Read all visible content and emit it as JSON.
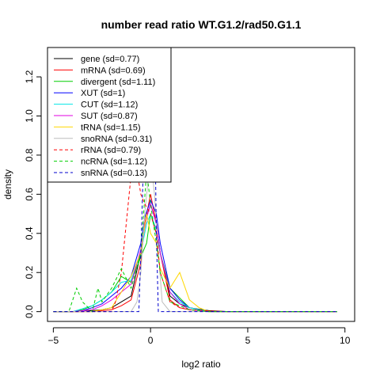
{
  "chart_data": {
    "type": "line",
    "title": "number read ratio WT.G1.2/rad50.G1.1",
    "xlabel": "log2 ratio",
    "ylabel": "density",
    "xlim": [
      -5.3,
      10.5
    ],
    "ylim": [
      -0.05,
      1.35
    ],
    "xticks": [
      -5,
      0,
      5,
      10
    ],
    "yticks": [
      0.0,
      0.2,
      0.4,
      0.6,
      0.8,
      1.0,
      1.2
    ],
    "grid": false,
    "legend_position": "top-left",
    "series": [
      {
        "name": "gene (sd=0.77)",
        "color": "#000000",
        "dash": "solid",
        "x": [
          -5,
          -3.5,
          -3,
          -2.5,
          -2,
          -1.5,
          -1,
          -0.5,
          -0.3,
          0,
          0.3,
          0.5,
          1,
          1.5,
          2,
          3,
          4,
          6,
          9.6
        ],
        "y": [
          0,
          0,
          0.005,
          0.01,
          0.02,
          0.05,
          0.08,
          0.3,
          0.45,
          0.55,
          0.45,
          0.3,
          0.08,
          0.04,
          0.02,
          0.005,
          0,
          0,
          0
        ]
      },
      {
        "name": "mRNA (sd=0.69)",
        "color": "#ff0000",
        "dash": "solid",
        "x": [
          -5,
          -3,
          -2.5,
          -2,
          -1.5,
          -1,
          -0.5,
          -0.3,
          0,
          0.3,
          0.5,
          1,
          1.5,
          2,
          3,
          4,
          9.6
        ],
        "y": [
          0,
          0,
          0.005,
          0.01,
          0.03,
          0.06,
          0.25,
          0.45,
          0.6,
          0.45,
          0.3,
          0.06,
          0.02,
          0.01,
          0.003,
          0,
          0
        ]
      },
      {
        "name": "divergent (sd=1.11)",
        "color": "#00cd00",
        "dash": "solid",
        "x": [
          -5,
          -4,
          -3.5,
          -3,
          -2.5,
          -2,
          -1.5,
          -1,
          -0.5,
          -0.2,
          0,
          0.3,
          0.5,
          1,
          1.5,
          2,
          3,
          9.6
        ],
        "y": [
          0,
          0,
          0.01,
          0.03,
          0.06,
          0.1,
          0.18,
          0.15,
          0.28,
          0.35,
          0.5,
          0.4,
          0.3,
          0.12,
          0.07,
          0.02,
          0,
          0
        ]
      },
      {
        "name": "XUT (sd=1)",
        "color": "#0000ff",
        "dash": "solid",
        "x": [
          -5,
          -4,
          -3.5,
          -3,
          -2.5,
          -2,
          -1.5,
          -1,
          -0.5,
          -0.3,
          0,
          0.3,
          0.5,
          1,
          1.5,
          2,
          3,
          9.6
        ],
        "y": [
          0,
          0,
          0.005,
          0.02,
          0.04,
          0.08,
          0.12,
          0.18,
          0.35,
          0.48,
          0.57,
          0.5,
          0.35,
          0.12,
          0.06,
          0.02,
          0,
          0
        ]
      },
      {
        "name": "CUT (sd=1.12)",
        "color": "#00e5e5",
        "dash": "solid",
        "x": [
          -5,
          -4,
          -3,
          -2.5,
          -2,
          -1.5,
          -1,
          -0.5,
          -0.2,
          0,
          0.3,
          0.5,
          1,
          1.5,
          2,
          3,
          9.6
        ],
        "y": [
          0,
          0,
          0.03,
          0.06,
          0.1,
          0.15,
          0.16,
          0.3,
          0.45,
          0.5,
          0.42,
          0.3,
          0.1,
          0.05,
          0.02,
          0,
          0
        ]
      },
      {
        "name": "SUT (sd=0.87)",
        "color": "#e000e0",
        "dash": "solid",
        "x": [
          -5,
          -4,
          -3,
          -2.5,
          -2,
          -1.5,
          -1,
          -0.5,
          -0.2,
          0,
          0.3,
          0.5,
          1,
          1.5,
          2,
          3,
          9.6
        ],
        "y": [
          0,
          0,
          0.01,
          0.03,
          0.06,
          0.1,
          0.14,
          0.32,
          0.48,
          0.55,
          0.45,
          0.3,
          0.1,
          0.04,
          0.01,
          0,
          0
        ]
      },
      {
        "name": "tRNA (sd=1.15)",
        "color": "#ffd700",
        "dash": "solid",
        "x": [
          -5,
          -3,
          -2,
          -1.5,
          -1,
          -0.5,
          -0.2,
          0,
          0.3,
          0.5,
          1,
          1.5,
          2,
          2.5,
          3,
          9.6
        ],
        "y": [
          0,
          0,
          0.02,
          0.1,
          0.18,
          0.3,
          0.5,
          0.4,
          0.35,
          0.22,
          0.12,
          0.2,
          0.06,
          0.02,
          0,
          0
        ]
      },
      {
        "name": "snoRNA (sd=0.31)",
        "color": "#bebebe",
        "dash": "solid",
        "x": [
          -5,
          -1.5,
          -1,
          -0.7,
          -0.5,
          -0.3,
          0,
          0.2,
          0.4,
          0.6,
          1,
          9.6
        ],
        "y": [
          0,
          0,
          0,
          0.05,
          0.2,
          0.5,
          0.8,
          0.6,
          0.3,
          0.05,
          0,
          0
        ]
      },
      {
        "name": "rRNA (sd=0.79)",
        "color": "#ff0000",
        "dash": "dashed",
        "x": [
          -5,
          -2,
          -1.8,
          -1.5,
          -1.2,
          -1,
          -0.7,
          -0.5,
          -0.3,
          0,
          0.3,
          0.5,
          1,
          1.5,
          2,
          3.5,
          9.6
        ],
        "y": [
          0,
          0,
          0.05,
          0.2,
          0.5,
          0.7,
          0.72,
          0.6,
          0.55,
          0.5,
          0.4,
          0.2,
          0.05,
          0.02,
          0.01,
          0,
          0
        ]
      },
      {
        "name": "ncRNA (sd=1.12)",
        "color": "#00cd00",
        "dash": "dashed",
        "x": [
          -5,
          -4.2,
          -3.8,
          -3.5,
          -3,
          -2.7,
          -2.5,
          -2,
          -1.5,
          -1,
          -0.5,
          -0.2,
          0,
          0.3,
          0.5,
          1,
          2,
          3,
          9.6
        ],
        "y": [
          0,
          0,
          0.12,
          0.05,
          0,
          0.12,
          0.05,
          0.12,
          0.22,
          0.12,
          0.3,
          0.72,
          0.55,
          0.35,
          0.2,
          0.05,
          0.01,
          0,
          0
        ]
      },
      {
        "name": "snRNA (sd=0.13)",
        "color": "#0000cd",
        "dash": "dashed",
        "x": [
          -5,
          -0.6,
          -0.5,
          -0.3,
          -0.2,
          0,
          0.2,
          0.3,
          0.4,
          9.6
        ],
        "y": [
          0,
          0,
          0.3,
          1.0,
          1.35,
          1.35,
          1.1,
          0.4,
          0,
          0
        ]
      }
    ]
  }
}
